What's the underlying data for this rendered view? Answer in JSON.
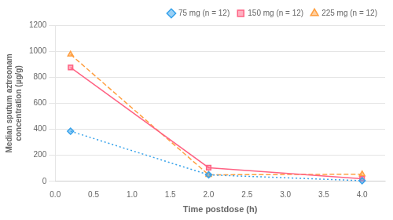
{
  "chart_data": {
    "type": "line",
    "xlabel": "Time postdose (h)",
    "ylabel": "Median sputum aztreonam\nconcentration (µg/g)",
    "series": [
      {
        "name": "75 mg (n = 12)",
        "x": [
          0.2,
          2.0,
          4.0
        ],
        "values": [
          385,
          50,
          5
        ],
        "marker": "diamond",
        "line_style": "dotted"
      },
      {
        "name": "150 mg (n = 12)",
        "x": [
          0.2,
          2.0,
          4.0
        ],
        "values": [
          875,
          105,
          20
        ],
        "marker": "square",
        "line_style": "solid"
      },
      {
        "name": "225 mg (n = 12)",
        "x": [
          0.2,
          2.0,
          4.0
        ],
        "values": [
          975,
          50,
          55
        ],
        "marker": "triangle",
        "line_style": "dashed"
      }
    ],
    "xlim": [
      0,
      4.3
    ],
    "ylim": [
      0,
      1200
    ],
    "xticks": [
      {
        "value": 0,
        "label": "0.0"
      },
      {
        "value": 0.5,
        "label": "0.5"
      },
      {
        "value": 1.0,
        "label": "1.0"
      },
      {
        "value": 1.5,
        "label": "1.5"
      },
      {
        "value": 2.0,
        "label": "2.0"
      },
      {
        "value": 2.5,
        "label": "2.5"
      },
      {
        "value": 3.0,
        "label": "3.0"
      },
      {
        "value": 3.5,
        "label": "3.5"
      },
      {
        "value": 4.0,
        "label": "4.0"
      }
    ],
    "yticks": [
      0,
      200,
      400,
      600,
      800,
      1000,
      1200
    ],
    "grid": "y",
    "legend": "upper right"
  }
}
